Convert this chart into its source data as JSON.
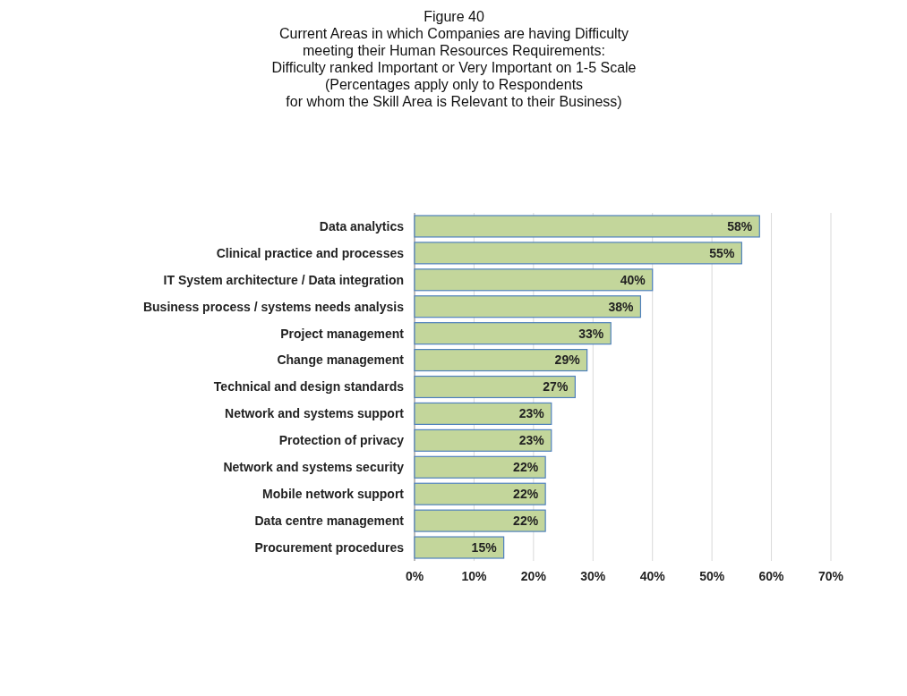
{
  "chart_data": {
    "type": "bar",
    "orientation": "horizontal",
    "title": "Figure 40",
    "subtitle": "Current Areas in which Companies are having Difficulty\nmeeting their Human Resources Requirements:\nDifficulty ranked Important or Very Important on 1-5 Scale\n(Percentages apply only to Respondents\nfor whom the Skill Area is Relevant to their Business)",
    "categories": [
      "Data analytics",
      "Clinical practice and processes",
      "IT System architecture / Data integration",
      "Business process / systems needs analysis",
      "Project management",
      "Change management",
      "Technical and design standards",
      "Network and systems support",
      "Protection of privacy",
      "Network and systems security",
      "Mobile network support",
      "Data centre management",
      "Procurement procedures"
    ],
    "values": [
      58,
      55,
      40,
      38,
      33,
      29,
      27,
      23,
      23,
      22,
      22,
      22,
      15
    ],
    "value_labels": [
      "58%",
      "55%",
      "40%",
      "38%",
      "33%",
      "29%",
      "27%",
      "23%",
      "23%",
      "22%",
      "22%",
      "22%",
      "15%"
    ],
    "color": "#c3d69b",
    "xlim": [
      0,
      70
    ],
    "xticks": [
      {
        "value": 0,
        "label": "0%"
      },
      {
        "value": 10,
        "label": "10%"
      },
      {
        "value": 20,
        "label": "20%"
      },
      {
        "value": 30,
        "label": "30%"
      },
      {
        "value": 40,
        "label": "40%"
      },
      {
        "value": 50,
        "label": "50%"
      },
      {
        "value": 60,
        "label": "60%"
      },
      {
        "value": 70,
        "label": "70%"
      }
    ],
    "grid": "x"
  }
}
